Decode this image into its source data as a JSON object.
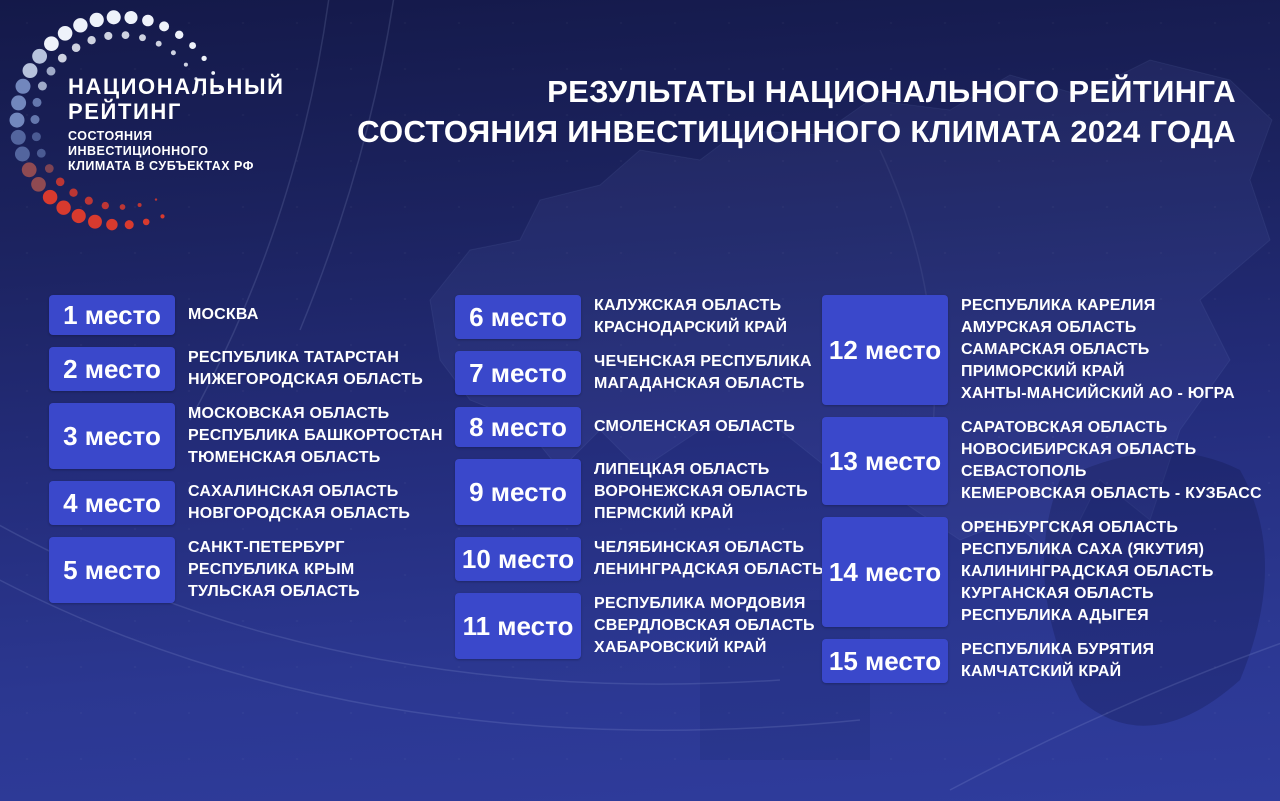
{
  "logo": {
    "title_lines": [
      "НАЦИОНАЛЬНЫЙ",
      "РЕЙТИНГ"
    ],
    "subtitle_lines": [
      "СОСТОЯНИЯ",
      "ИНВЕСТИЦИОННОГО",
      "КЛИМАТА В СУБЪЕКТАХ РФ"
    ]
  },
  "header": {
    "title_line1": "РЕЗУЛЬТАТЫ НАЦИОНАЛЬНОГО РЕЙТИНГА",
    "title_line2": "СОСТОЯНИЯ ИНВЕСТИЦИОННОГО КЛИМАТА 2024 ГОДА"
  },
  "colors": {
    "background_top": "#141949",
    "background_bottom": "#2f3c9d",
    "badge_blue": "#3a48cb",
    "text_white": "#ffffff",
    "logo_red": "#d83a2e",
    "logo_blue": "#53659e"
  },
  "ranking": {
    "columns": [
      {
        "items": [
          {
            "place": "1 место",
            "regions": [
              "МОСКВА"
            ]
          },
          {
            "place": "2 место",
            "regions": [
              "РЕСПУБЛИКА ТАТАРСТАН",
              "НИЖЕГОРОДСКАЯ ОБЛАСТЬ"
            ]
          },
          {
            "place": "3 место",
            "regions": [
              "МОСКОВСКАЯ ОБЛАСТЬ",
              "РЕСПУБЛИКА БАШКОРТОСТАН",
              "ТЮМЕНСКАЯ ОБЛАСТЬ"
            ]
          },
          {
            "place": "4 место",
            "regions": [
              "САХАЛИНСКАЯ ОБЛАСТЬ",
              "НОВГОРОДСКАЯ ОБЛАСТЬ"
            ]
          },
          {
            "place": "5 место",
            "regions": [
              "САНКТ-ПЕТЕРБУРГ",
              "РЕСПУБЛИКА КРЫМ",
              "ТУЛЬСКАЯ ОБЛАСТЬ"
            ]
          }
        ]
      },
      {
        "items": [
          {
            "place": "6 место",
            "regions": [
              "КАЛУЖСКАЯ ОБЛАСТЬ",
              "КРАСНОДАРСКИЙ КРАЙ"
            ]
          },
          {
            "place": "7 место",
            "regions": [
              "ЧЕЧЕНСКАЯ РЕСПУБЛИКА",
              "МАГАДАНСКАЯ ОБЛАСТЬ"
            ]
          },
          {
            "place": "8 место",
            "regions": [
              "СМОЛЕНСКАЯ ОБЛАСТЬ"
            ]
          },
          {
            "place": "9 место",
            "regions": [
              "ЛИПЕЦКАЯ ОБЛАСТЬ",
              "ВОРОНЕЖСКАЯ ОБЛАСТЬ",
              "ПЕРМСКИЙ КРАЙ"
            ]
          },
          {
            "place": "10 место",
            "regions": [
              "ЧЕЛЯБИНСКАЯ ОБЛАСТЬ",
              "ЛЕНИНГРАДСКАЯ ОБЛАСТЬ"
            ]
          },
          {
            "place": "11 место",
            "regions": [
              "РЕСПУБЛИКА МОРДОВИЯ",
              "СВЕРДЛОВСКАЯ ОБЛАСТЬ",
              "ХАБАРОВСКИЙ КРАЙ"
            ]
          }
        ]
      },
      {
        "items": [
          {
            "place": "12 место",
            "regions": [
              "РЕСПУБЛИКА КАРЕЛИЯ",
              "АМУРСКАЯ ОБЛАСТЬ",
              "САМАРСКАЯ ОБЛАСТЬ",
              "ПРИМОРСКИЙ КРАЙ",
              "ХАНТЫ-МАНСИЙСКИЙ АО - ЮГРА"
            ]
          },
          {
            "place": "13 место",
            "regions": [
              "САРАТОВСКАЯ ОБЛАСТЬ",
              "НОВОСИБИРСКАЯ ОБЛАСТЬ",
              "СЕВАСТОПОЛЬ",
              "КЕМЕРОВСКАЯ ОБЛАСТЬ - КУЗБАСС"
            ]
          },
          {
            "place": "14 место",
            "regions": [
              "ОРЕНБУРГСКАЯ ОБЛАСТЬ",
              "РЕСПУБЛИКА САХА (ЯКУТИЯ)",
              "КАЛИНИНГРАДСКАЯ ОБЛАСТЬ",
              "КУРГАНСКАЯ ОБЛАСТЬ",
              "РЕСПУБЛИКА АДЫГЕЯ"
            ]
          },
          {
            "place": "15 место",
            "regions": [
              "РЕСПУБЛИКА БУРЯТИЯ",
              "КАМЧАТСКИЙ КРАЙ"
            ]
          }
        ]
      }
    ]
  }
}
